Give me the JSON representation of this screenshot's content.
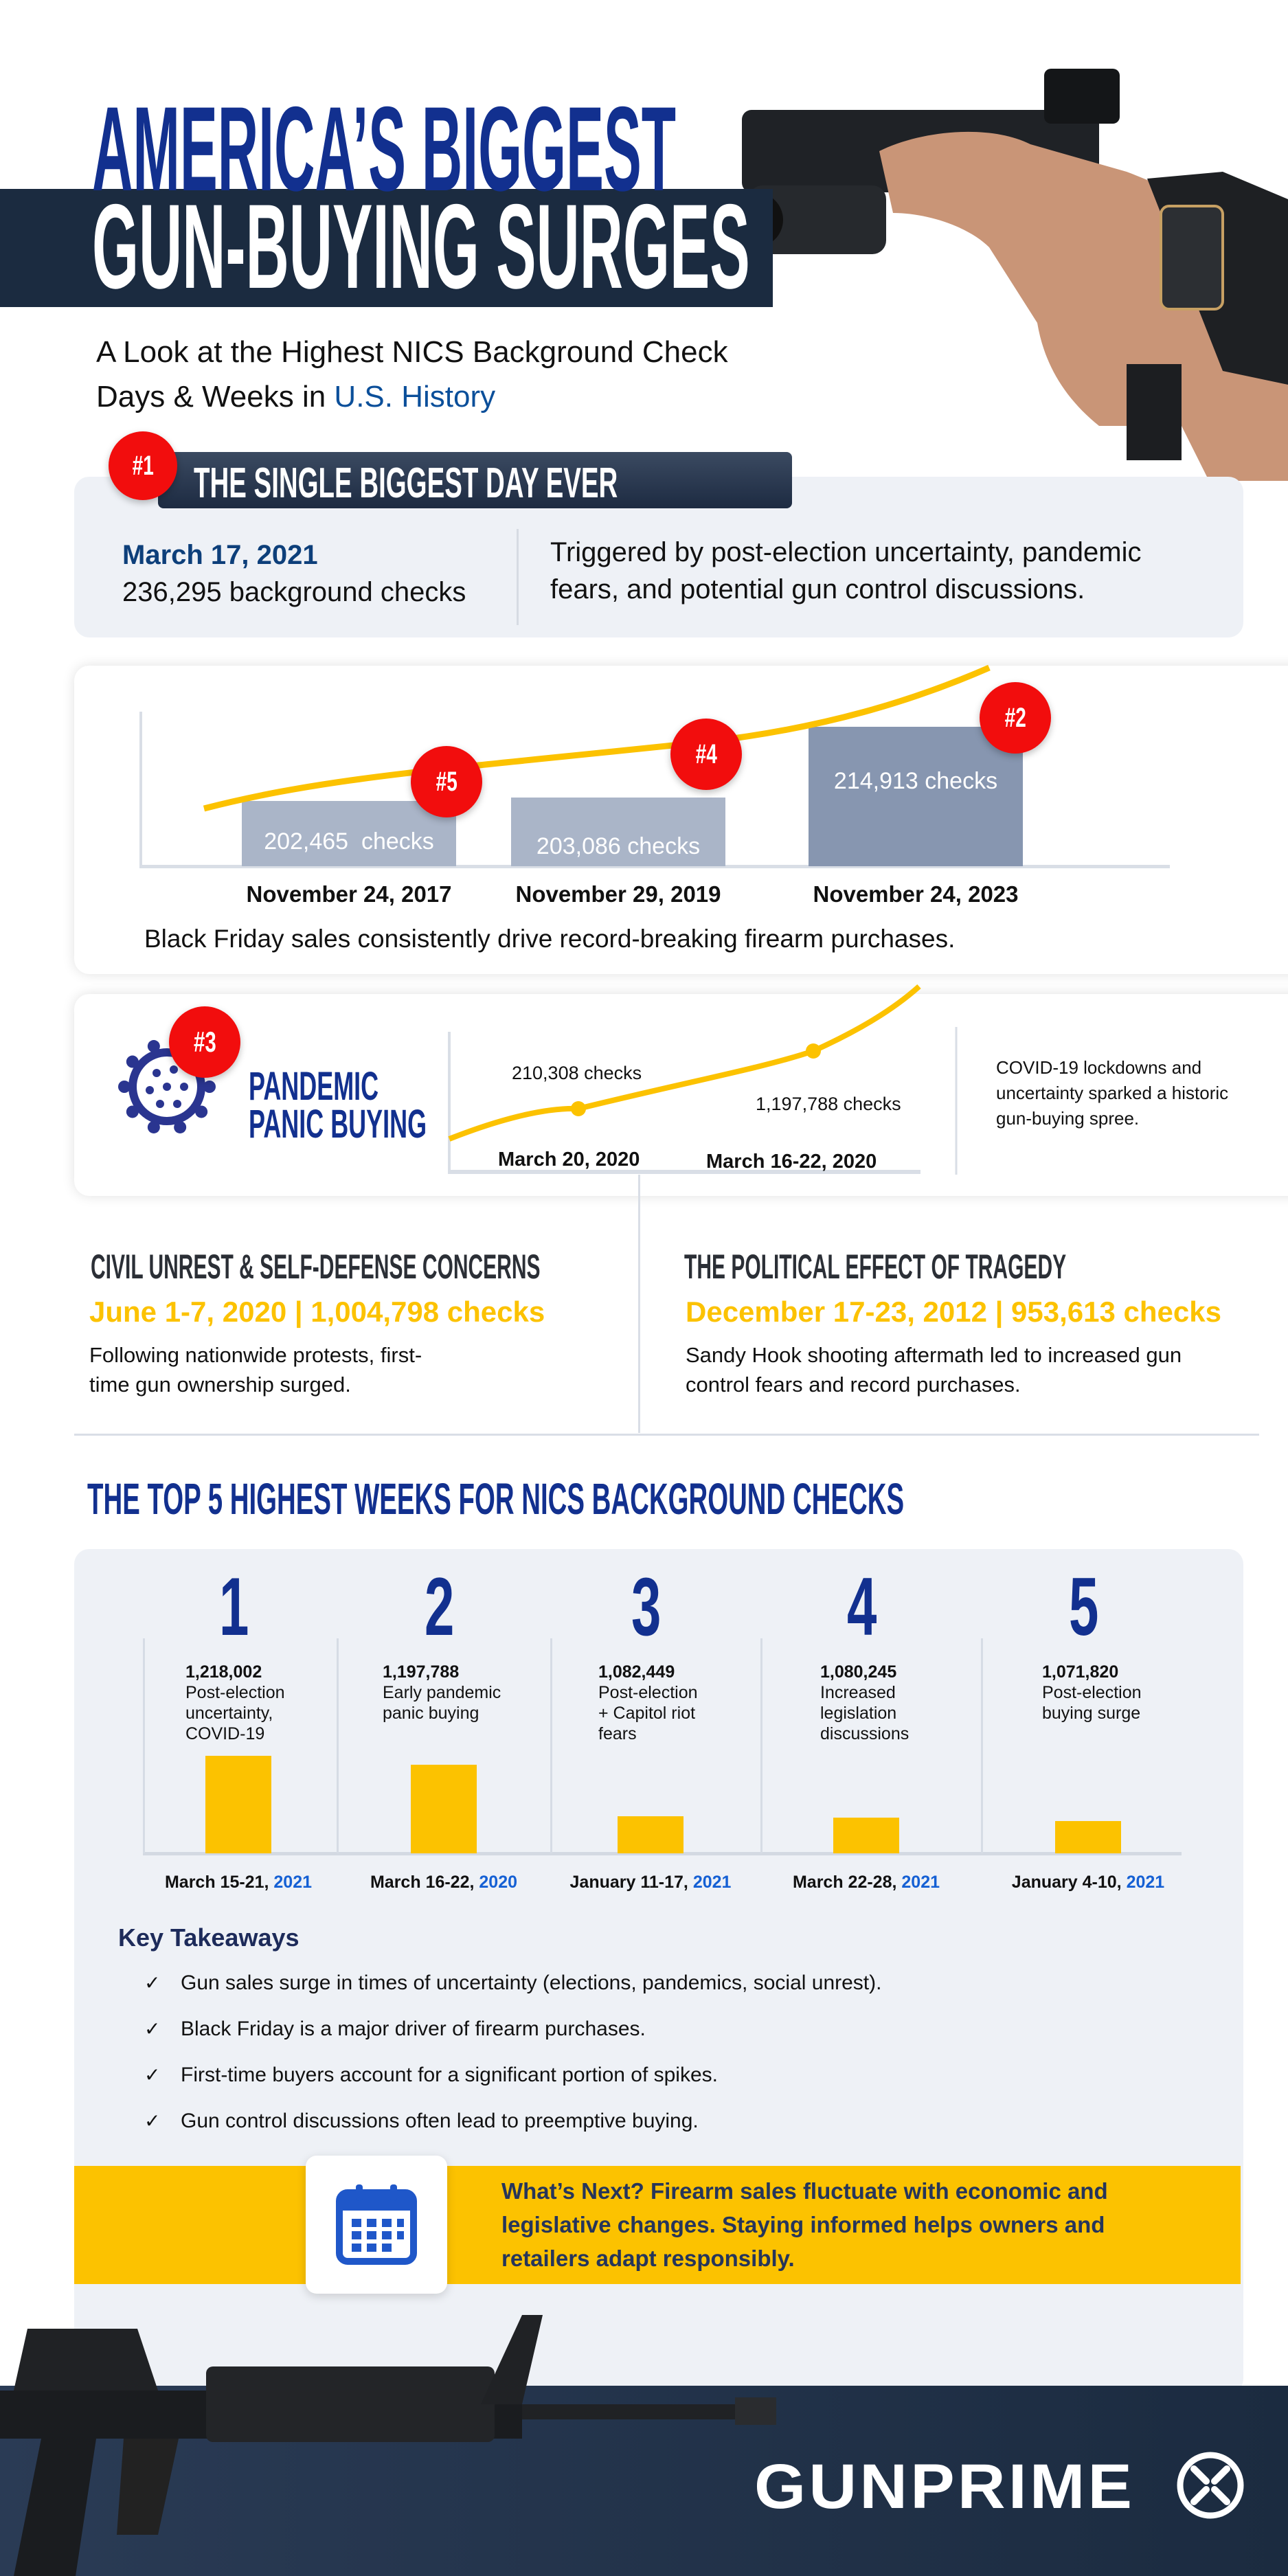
{
  "header": {
    "title_line1": "AMERICA’S BIGGEST",
    "title_line2": "GUN-BUYING SURGES",
    "subtitle_line1": "A Look at the Highest NICS Background Check",
    "subtitle_line2_prefix": "Days & Weeks in ",
    "subtitle_line2_highlight": "U.S. History"
  },
  "biggest_day": {
    "badge": "#1",
    "heading": "THE SINGLE BIGGEST DAY EVER",
    "date": "March 17, 2021",
    "checks": "236,295 background checks",
    "description_line1": "Triggered by post-election uncertainty, pandemic",
    "description_line2": "fears, and potential gun control discussions."
  },
  "black_friday": {
    "caption": "Black Friday sales consistently drive record-breaking firearm purchases.",
    "items": [
      {
        "badge": "#5",
        "label": "202,465  checks",
        "date": "November 24, 2017",
        "value": 202465
      },
      {
        "badge": "#4",
        "label": "203,086 checks",
        "date": "November 29, 2019",
        "value": 203086
      },
      {
        "badge": "#2",
        "label": "214,913 checks",
        "date": "November 24, 2023",
        "value": 214913
      }
    ]
  },
  "pandemic": {
    "badge": "#3",
    "title_line1": "PANDEMIC",
    "title_line2": "PANIC BUYING",
    "point1_label": "210,308 checks",
    "point1_date": "March 20, 2020",
    "point2_label": "1,197,788 checks",
    "point2_date": "March 16-22, 2020",
    "desc_line1": "COVID-19 lockdowns and",
    "desc_line2": "uncertainty sparked a historic",
    "desc_line3": "gun-buying spree."
  },
  "civil_unrest": {
    "heading": "CIVIL UNREST & SELF-DEFENSE CONCERNS",
    "stat": "June 1-7, 2020 | 1,004,798 checks",
    "desc_line1": "Following nationwide protests, first-",
    "desc_line2": "time gun ownership surged."
  },
  "tragedy": {
    "heading": "THE POLITICAL EFFECT OF TRAGEDY",
    "stat": "December 17-23, 2012 | 953,613 checks",
    "desc_line1": "Sandy Hook shooting aftermath led to increased gun",
    "desc_line2": "control fears and record purchases."
  },
  "top5": {
    "heading": "THE TOP 5 HIGHEST WEEKS FOR NICS BACKGROUND CHECKS",
    "weeks": [
      {
        "rank": "1",
        "value_label": "1,218,002",
        "value": 1218002,
        "desc": [
          "Post-election",
          "uncertainty,",
          "COVID-19"
        ],
        "date": "March 15-21, ",
        "year": "2021"
      },
      {
        "rank": "2",
        "value_label": "1,197,788",
        "value": 1197788,
        "desc": [
          "Early pandemic",
          "panic buying"
        ],
        "date": "March 16-22, ",
        "year": "2020"
      },
      {
        "rank": "3",
        "value_label": "1,082,449",
        "value": 1082449,
        "desc": [
          "Post-election",
          "+ Capitol riot",
          "fears"
        ],
        "date": "January 11-17, ",
        "year": "2021"
      },
      {
        "rank": "4",
        "value_label": "1,080,245",
        "value": 1080245,
        "desc": [
          "Increased",
          "legislation",
          "discussions"
        ],
        "date": "March 22-28, ",
        "year": "2021"
      },
      {
        "rank": "5",
        "value_label": "1,071,820",
        "value": 1071820,
        "desc": [
          "Post-election",
          "buying surge"
        ],
        "date": "January 4-10, ",
        "year": "2021"
      }
    ]
  },
  "takeaways": {
    "heading": "Key Takeaways",
    "check_icon": "check-icon",
    "items": [
      "Gun sales surge in times of uncertainty (elections, pandemics, social unrest).",
      "Black Friday is a major driver of firearm purchases.",
      "First-time buyers account for a significant portion of spikes.",
      "Gun control discussions often lead to preemptive buying."
    ]
  },
  "whats_next": {
    "icon": "calendar-icon",
    "line1": "What’s Next? Firearm sales fluctuate with economic and",
    "line2": "legislative changes. Staying informed helps owners and",
    "line3": "retailers adapt responsibly."
  },
  "footer": {
    "logo": "GUNPRIME"
  },
  "colors": {
    "navy": "#1b2b40",
    "title_blue": "#12308f",
    "accent_yellow": "#fcc200",
    "badge_red": "#f20d0d",
    "link_blue": "#0b57b8"
  }
}
